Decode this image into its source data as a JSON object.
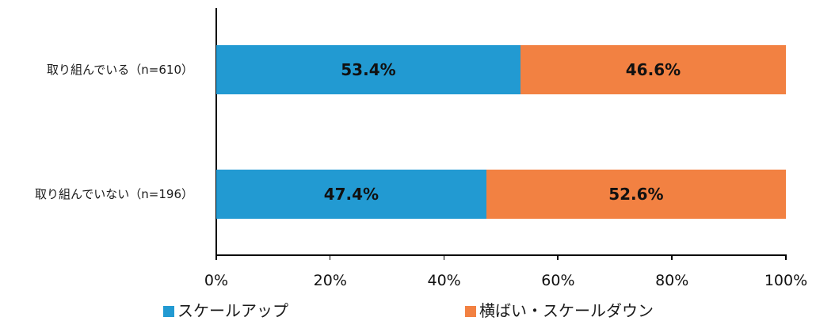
{
  "chart_data": {
    "type": "bar",
    "orientation": "horizontal",
    "stacked": true,
    "categories": [
      "取り組んでいる（n=610）",
      "取り組んでいない（n=196）"
    ],
    "series": [
      {
        "name": "スケールアップ",
        "color": "#229AD2",
        "values": [
          53.4,
          47.4
        ],
        "labels": [
          "53.4%",
          "47.4%"
        ]
      },
      {
        "name": "横ばい・スケールダウン",
        "color": "#F28142",
        "values": [
          46.6,
          52.6
        ],
        "labels": [
          "46.6%",
          "52.6%"
        ]
      }
    ],
    "xlim": [
      0,
      100
    ],
    "xticks": [
      "0%",
      "20%",
      "40%",
      "60%",
      "80%",
      "100%"
    ],
    "title": "",
    "xlabel": "",
    "ylabel": "",
    "grid": false,
    "legend_position": "bottom"
  }
}
